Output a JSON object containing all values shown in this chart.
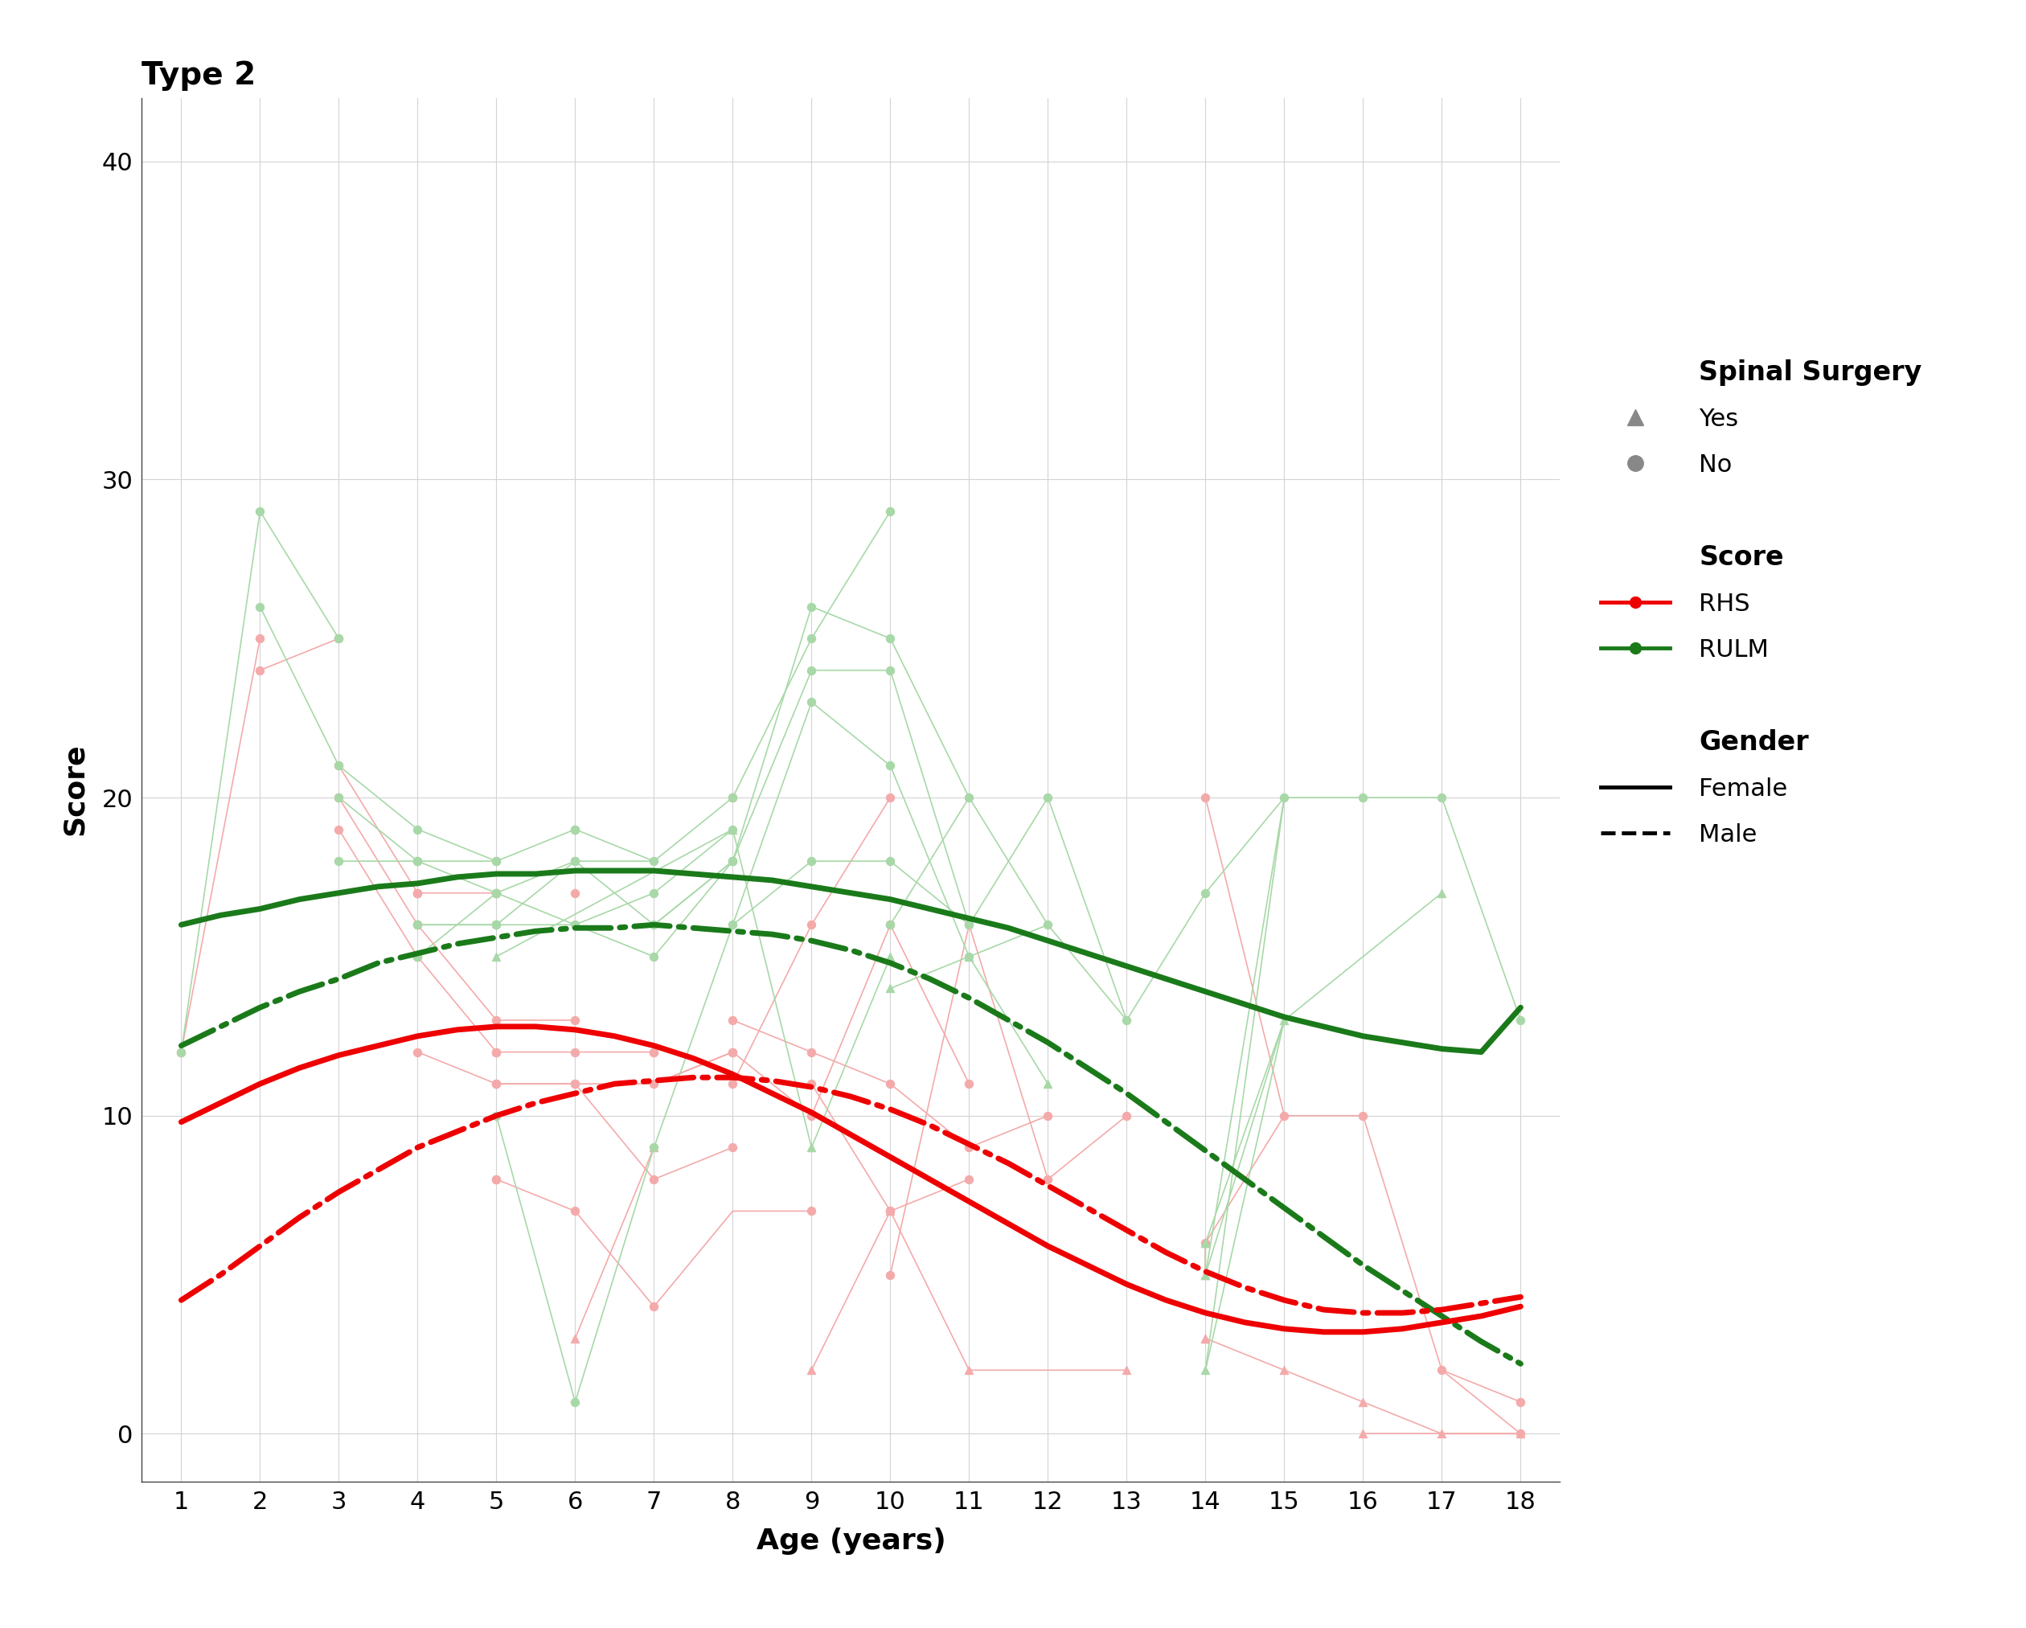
{
  "title": "Type 2",
  "xlabel": "Age (years)",
  "ylabel": "Score",
  "xticks": [
    1,
    2,
    3,
    4,
    5,
    6,
    7,
    8,
    9,
    10,
    11,
    12,
    13,
    14,
    15,
    16,
    17,
    18
  ],
  "yticks": [
    0,
    10,
    20,
    30,
    40
  ],
  "bg_color": "#ffffff",
  "grid_color": "#d3d3d3",
  "rhs_female_smooth_x": [
    1,
    1.5,
    2,
    2.5,
    3,
    3.5,
    4,
    4.5,
    5,
    5.5,
    6,
    6.5,
    7,
    7.5,
    8,
    8.5,
    9,
    9.5,
    10,
    10.5,
    11,
    11.5,
    12,
    12.5,
    13,
    13.5,
    14,
    14.5,
    15,
    15.5,
    16,
    16.5,
    17,
    17.5,
    18
  ],
  "rhs_female_smooth_y": [
    9.8,
    10.4,
    11.0,
    11.5,
    11.9,
    12.2,
    12.5,
    12.7,
    12.8,
    12.8,
    12.7,
    12.5,
    12.2,
    11.8,
    11.3,
    10.7,
    10.1,
    9.4,
    8.7,
    8.0,
    7.3,
    6.6,
    5.9,
    5.3,
    4.7,
    4.2,
    3.8,
    3.5,
    3.3,
    3.2,
    3.2,
    3.3,
    3.5,
    3.7,
    4.0
  ],
  "rhs_male_smooth_x": [
    1,
    1.5,
    2,
    2.5,
    3,
    3.5,
    4,
    4.5,
    5,
    5.5,
    6,
    6.5,
    7,
    7.5,
    8,
    8.5,
    9,
    9.5,
    10,
    10.5,
    11,
    11.5,
    12,
    12.5,
    13,
    13.5,
    14,
    14.5,
    15,
    15.5,
    16,
    16.5,
    17,
    17.5,
    18
  ],
  "rhs_male_smooth_y": [
    4.2,
    5.0,
    5.9,
    6.8,
    7.6,
    8.3,
    9.0,
    9.5,
    10.0,
    10.4,
    10.7,
    11.0,
    11.1,
    11.2,
    11.2,
    11.1,
    10.9,
    10.6,
    10.2,
    9.7,
    9.1,
    8.5,
    7.8,
    7.1,
    6.4,
    5.7,
    5.1,
    4.6,
    4.2,
    3.9,
    3.8,
    3.8,
    3.9,
    4.1,
    4.3
  ],
  "rulm_female_smooth_x": [
    1,
    1.5,
    2,
    2.5,
    3,
    3.5,
    4,
    4.5,
    5,
    5.5,
    6,
    6.5,
    7,
    7.5,
    8,
    8.5,
    9,
    9.5,
    10,
    10.5,
    11,
    11.5,
    12,
    12.5,
    13,
    13.5,
    14,
    14.5,
    15,
    15.5,
    16,
    16.5,
    17,
    17.5,
    18
  ],
  "rulm_female_smooth_y": [
    16.0,
    16.3,
    16.5,
    16.8,
    17.0,
    17.2,
    17.3,
    17.5,
    17.6,
    17.6,
    17.7,
    17.7,
    17.7,
    17.6,
    17.5,
    17.4,
    17.2,
    17.0,
    16.8,
    16.5,
    16.2,
    15.9,
    15.5,
    15.1,
    14.7,
    14.3,
    13.9,
    13.5,
    13.1,
    12.8,
    12.5,
    12.3,
    12.1,
    12.0,
    13.4
  ],
  "rulm_male_smooth_x": [
    1,
    1.5,
    2,
    2.5,
    3,
    3.5,
    4,
    4.5,
    5,
    5.5,
    6,
    6.5,
    7,
    7.5,
    8,
    8.5,
    9,
    9.5,
    10,
    10.5,
    11,
    11.5,
    12,
    12.5,
    13,
    13.5,
    14,
    14.5,
    15,
    15.5,
    16,
    16.5,
    17,
    17.5,
    18
  ],
  "rulm_male_smooth_y": [
    12.2,
    12.8,
    13.4,
    13.9,
    14.3,
    14.8,
    15.1,
    15.4,
    15.6,
    15.8,
    15.9,
    15.9,
    16.0,
    15.9,
    15.8,
    15.7,
    15.5,
    15.2,
    14.8,
    14.3,
    13.7,
    13.0,
    12.3,
    11.5,
    10.7,
    9.8,
    8.9,
    8.0,
    7.1,
    6.2,
    5.3,
    4.5,
    3.7,
    2.9,
    2.2
  ],
  "rhs_traj_no": [
    [
      [
        1,
        2
      ],
      [
        12,
        25
      ]
    ],
    [
      [
        2,
        3
      ],
      [
        24,
        25
      ]
    ],
    [
      [
        3,
        4,
        4,
        5
      ],
      [
        21,
        17,
        17,
        17
      ]
    ],
    [
      [
        3,
        4,
        5,
        6
      ],
      [
        20,
        16,
        13,
        13
      ]
    ],
    [
      [
        3,
        4,
        5,
        6,
        7
      ],
      [
        19,
        15,
        12,
        12,
        12
      ]
    ],
    [
      [
        4,
        5,
        6,
        7,
        8
      ],
      [
        12,
        11,
        11,
        8,
        9
      ]
    ],
    [
      [
        5,
        6,
        7,
        8,
        9
      ],
      [
        8,
        7,
        4,
        7,
        7
      ]
    ],
    [
      [
        5,
        6,
        7,
        8
      ],
      [
        11,
        11,
        11,
        12
      ]
    ],
    [
      [
        7,
        8,
        9,
        10,
        11
      ],
      [
        11,
        12,
        10,
        16,
        11
      ]
    ],
    [
      [
        8,
        9,
        10,
        11,
        12
      ],
      [
        13,
        12,
        11,
        9,
        10
      ]
    ],
    [
      [
        8,
        9,
        10
      ],
      [
        11,
        16,
        20
      ]
    ],
    [
      [
        9,
        10,
        11
      ],
      [
        11,
        7,
        8
      ]
    ],
    [
      [
        10,
        11,
        12,
        13
      ],
      [
        5,
        16,
        8,
        10
      ]
    ],
    [
      [
        14,
        15,
        16,
        17,
        18
      ],
      [
        6,
        10,
        10,
        2,
        1
      ]
    ],
    [
      [
        14,
        15
      ],
      [
        20,
        10
      ]
    ],
    [
      [
        17,
        18
      ],
      [
        2,
        0
      ]
    ]
  ],
  "rhs_traj_yes": [
    [
      [
        6,
        7
      ],
      [
        3,
        9
      ]
    ],
    [
      [
        9,
        10
      ],
      [
        2,
        7
      ]
    ],
    [
      [
        10,
        11,
        13
      ],
      [
        7,
        2,
        2
      ]
    ],
    [
      [
        14,
        14
      ],
      [
        6,
        5
      ]
    ],
    [
      [
        14,
        15,
        16,
        17,
        18
      ],
      [
        3,
        2,
        1,
        0,
        0
      ]
    ],
    [
      [
        16,
        17,
        18
      ],
      [
        0,
        0,
        0
      ]
    ]
  ],
  "rulm_traj_no": [
    [
      [
        1,
        2,
        3
      ],
      [
        12,
        29,
        25
      ]
    ],
    [
      [
        2,
        3,
        4,
        5
      ],
      [
        26,
        21,
        19,
        18
      ]
    ],
    [
      [
        3,
        4,
        5,
        6
      ],
      [
        20,
        18,
        18,
        19
      ]
    ],
    [
      [
        3,
        4,
        5,
        6,
        7
      ],
      [
        18,
        18,
        17,
        18,
        18
      ]
    ],
    [
      [
        4,
        5,
        6,
        7,
        8
      ],
      [
        16,
        16,
        16,
        17,
        19
      ]
    ],
    [
      [
        4,
        5,
        6,
        7,
        8
      ],
      [
        16,
        16,
        18,
        16,
        18
      ]
    ],
    [
      [
        4,
        5,
        6,
        7,
        8
      ],
      [
        15,
        17,
        16,
        15,
        18
      ]
    ],
    [
      [
        5,
        6,
        7,
        8,
        9
      ],
      [
        10,
        1,
        9,
        16,
        18
      ]
    ],
    [
      [
        6,
        7,
        8,
        9,
        10
      ],
      [
        19,
        18,
        20,
        25,
        29
      ]
    ],
    [
      [
        7,
        8,
        9,
        10,
        11
      ],
      [
        16,
        18,
        26,
        25,
        20
      ]
    ],
    [
      [
        8,
        9,
        10,
        11
      ],
      [
        18,
        24,
        24,
        16
      ]
    ],
    [
      [
        8,
        9,
        10,
        11,
        12
      ],
      [
        16,
        23,
        21,
        15,
        16
      ]
    ],
    [
      [
        9,
        10,
        11,
        12
      ],
      [
        18,
        18,
        16,
        20
      ]
    ],
    [
      [
        10,
        11,
        12,
        13
      ],
      [
        16,
        20,
        16,
        13
      ]
    ],
    [
      [
        12,
        13,
        14,
        15,
        16,
        17,
        18
      ],
      [
        20,
        13,
        17,
        20,
        20,
        20,
        13
      ]
    ],
    [
      [
        14,
        15
      ],
      [
        6,
        13
      ]
    ],
    [
      [
        14,
        15
      ],
      [
        5,
        20
      ]
    ],
    [
      [
        14,
        15
      ],
      [
        2,
        20
      ]
    ]
  ],
  "rulm_traj_yes": [
    [
      [
        5,
        8
      ],
      [
        15,
        19
      ]
    ],
    [
      [
        8,
        9,
        10
      ],
      [
        19,
        9,
        15
      ]
    ],
    [
      [
        10,
        11,
        12
      ],
      [
        14,
        15,
        11
      ]
    ],
    [
      [
        14,
        14,
        15
      ],
      [
        6,
        5,
        13
      ]
    ],
    [
      [
        14,
        15,
        17
      ],
      [
        2,
        13,
        17
      ]
    ]
  ],
  "rhs_scatter_no_x": [
    1,
    2,
    2,
    3,
    3,
    3,
    3,
    4,
    4,
    4,
    4,
    4,
    4,
    5,
    5,
    5,
    5,
    5,
    5,
    5,
    5,
    5,
    6,
    6,
    6,
    6,
    6,
    6,
    7,
    7,
    7,
    7,
    7,
    8,
    8,
    8,
    8,
    8,
    8,
    9,
    9,
    9,
    9,
    9,
    10,
    10,
    10,
    10,
    10,
    10,
    11,
    11,
    11,
    11,
    12,
    12,
    13,
    14,
    14,
    15,
    16,
    17,
    18,
    18
  ],
  "rhs_scatter_no_y": [
    12,
    25,
    24,
    25,
    21,
    20,
    19,
    17,
    17,
    17,
    16,
    15,
    12,
    17,
    17,
    13,
    12,
    12,
    11,
    11,
    8,
    8,
    17,
    13,
    12,
    11,
    11,
    7,
    12,
    12,
    11,
    8,
    4,
    20,
    13,
    12,
    12,
    11,
    9,
    16,
    12,
    11,
    10,
    7,
    20,
    16,
    11,
    7,
    7,
    5,
    16,
    11,
    9,
    8,
    10,
    8,
    10,
    20,
    6,
    10,
    10,
    2,
    1,
    0
  ],
  "rhs_scatter_yes_x": [
    6,
    7,
    9,
    10,
    11,
    13,
    14,
    14,
    14,
    14,
    15,
    16,
    16,
    17,
    18
  ],
  "rhs_scatter_yes_y": [
    3,
    9,
    2,
    7,
    2,
    2,
    6,
    5,
    3,
    3,
    2,
    1,
    0,
    0,
    0
  ],
  "rulm_scatter_no_x": [
    1,
    2,
    2,
    3,
    3,
    3,
    3,
    4,
    4,
    4,
    4,
    4,
    4,
    4,
    5,
    5,
    5,
    5,
    5,
    5,
    5,
    5,
    5,
    6,
    6,
    6,
    6,
    6,
    6,
    7,
    7,
    7,
    7,
    7,
    8,
    8,
    8,
    8,
    8,
    8,
    9,
    9,
    9,
    9,
    9,
    10,
    10,
    10,
    10,
    10,
    10,
    11,
    11,
    11,
    12,
    12,
    13,
    14,
    15,
    16,
    17,
    18
  ],
  "rulm_scatter_no_y": [
    12,
    29,
    26,
    25,
    21,
    20,
    18,
    19,
    18,
    18,
    16,
    16,
    15,
    15,
    18,
    18,
    17,
    17,
    17,
    16,
    16,
    16,
    10,
    19,
    19,
    18,
    18,
    16,
    1,
    18,
    17,
    16,
    15,
    9,
    20,
    19,
    18,
    18,
    18,
    16,
    26,
    25,
    24,
    23,
    18,
    29,
    25,
    24,
    21,
    18,
    16,
    20,
    16,
    15,
    16,
    20,
    13,
    17,
    20,
    20,
    20,
    13
  ],
  "rulm_scatter_yes_x": [
    5,
    8,
    9,
    10,
    10,
    11,
    12,
    14,
    14,
    14,
    15,
    17
  ],
  "rulm_scatter_yes_y": [
    15,
    19,
    9,
    15,
    14,
    15,
    11,
    6,
    5,
    2,
    13,
    17
  ],
  "color_red": "#EE0000",
  "color_green": "#1a7a1a",
  "color_red_scatter": "#F4AAAA",
  "color_green_scatter": "#A8D8A8",
  "legend_gray": "#888888"
}
